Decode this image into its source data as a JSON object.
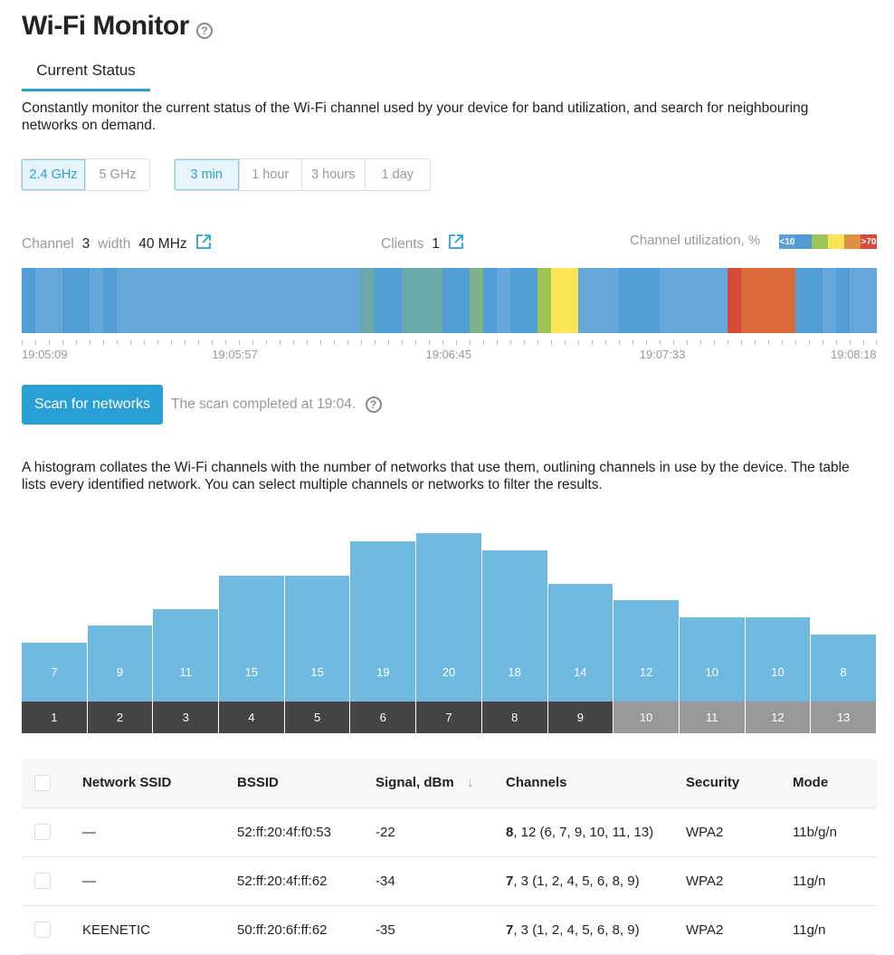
{
  "title": "Wi-Fi Monitor",
  "tab": "Current Status",
  "description": "Constantly monitor the current status of the Wi-Fi channel used by your device for band utilization, and search for neighbouring networks on demand.",
  "bands": [
    "2.4 GHz",
    "5 GHz"
  ],
  "band_selected": "2.4 GHz",
  "periods": [
    "3 min",
    "1 hour",
    "3 hours",
    "1 day"
  ],
  "period_selected": "3 min",
  "status": {
    "channel_label": "Channel",
    "channel": "3",
    "width_label": "width",
    "width": "40 MHz",
    "clients_label": "Clients",
    "clients": "1",
    "utilization_label": "Channel utilization, %",
    "legend_low": "<10",
    "legend_high": ">70"
  },
  "legend_colors": [
    "#5b9fd8",
    "#519bd4",
    "#9bc557",
    "#f9e457",
    "#df8f44",
    "#d84a3a"
  ],
  "utilization_timeline": {
    "colors": {
      "L": "#65a7d9",
      "D": "#519dd6",
      "T": "#6aa8a8",
      "G1": "#7db386",
      "G": "#9cc454",
      "Y": "#fbe455",
      "R": "#d84a3a",
      "O": "#db6a3b"
    },
    "samples": [
      "D",
      "L",
      "L",
      "D",
      "D",
      "L",
      "D",
      "L",
      "L",
      "L",
      "L",
      "L",
      "L",
      "L",
      "L",
      "L",
      "L",
      "L",
      "L",
      "L",
      "L",
      "L",
      "L",
      "L",
      "L",
      "T",
      "D",
      "D",
      "T",
      "T",
      "T",
      "D",
      "D",
      "G1",
      "D",
      "L",
      "D",
      "D",
      "G",
      "Y",
      "Y",
      "L",
      "L",
      "L",
      "D",
      "D",
      "D",
      "L",
      "L",
      "L",
      "L",
      "L",
      "R",
      "O",
      "O",
      "O",
      "O",
      "D",
      "D",
      "L",
      "D",
      "L",
      "L"
    ],
    "time_labels": [
      "19:05:09",
      "19:05:57",
      "19:06:45",
      "19:07:33",
      "19:08:18"
    ]
  },
  "scan": {
    "button": "Scan for networks",
    "status": "The scan completed at 19:04."
  },
  "histogram_description": "A histogram collates the Wi-Fi channels with the number of networks that use them, outlining channels in use by the device. The table lists every identified network. You can select multiple channels or networks to filter the results.",
  "histogram": {
    "channels": [
      "1",
      "2",
      "3",
      "4",
      "5",
      "6",
      "7",
      "8",
      "9",
      "10",
      "11",
      "12",
      "13"
    ],
    "counts": [
      7,
      9,
      11,
      15,
      15,
      19,
      20,
      18,
      14,
      12,
      10,
      10,
      8
    ],
    "in_use": [
      true,
      true,
      true,
      true,
      true,
      true,
      true,
      true,
      true,
      false,
      false,
      false,
      false
    ]
  },
  "table": {
    "headers": [
      "Network SSID",
      "BSSID",
      "Signal, dBm",
      "Channels",
      "Security",
      "Mode"
    ],
    "rows": [
      {
        "ssid": "—",
        "bssid": "52:ff:20:4f:f0:53",
        "signal": "-22",
        "primary": "8",
        "channels": ", 12 (6, 7, 9, 10, 11, 13)",
        "security": "WPA2",
        "mode": "11b/g/n"
      },
      {
        "ssid": "—",
        "bssid": "52:ff:20:4f:ff:62",
        "signal": "-34",
        "primary": "7",
        "channels": ", 3 (1, 2, 4, 5, 6, 8, 9)",
        "security": "WPA2",
        "mode": "11g/n"
      },
      {
        "ssid": "KEENETIC",
        "bssid": "50:ff:20:6f:ff:62",
        "signal": "-35",
        "primary": "7",
        "channels": ", 3 (1, 2, 4, 5, 6, 8, 9)",
        "security": "WPA2",
        "mode": "11g/n"
      }
    ]
  }
}
